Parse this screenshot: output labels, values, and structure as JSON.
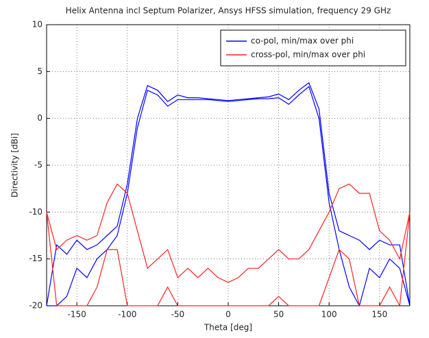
{
  "chart_data": {
    "type": "line",
    "title": "Helix Antenna incl Septum Polarizer, Ansys HFSS simulation, frequency 29 GHz",
    "x_label": "Theta [deg]",
    "y_label": "Directivity [dBi]",
    "x": [
      -180,
      -170,
      -160,
      -150,
      -140,
      -130,
      -120,
      -110,
      -100,
      -90,
      -80,
      -70,
      -60,
      -50,
      -40,
      -30,
      -20,
      -10,
      0,
      10,
      20,
      30,
      40,
      50,
      60,
      70,
      80,
      90,
      100,
      110,
      120,
      130,
      140,
      150,
      160,
      170,
      180
    ],
    "series": [
      {
        "name": "co-pol, min/max over phi",
        "color": "#0000ff",
        "values": [
          -20,
          -13.5,
          -14.5,
          -13,
          -14,
          -13.5,
          -12.5,
          -11.5,
          -7,
          0,
          3.5,
          3,
          1.8,
          2.5,
          2.2,
          2.2,
          2.1,
          2,
          1.9,
          2,
          2.1,
          2.2,
          2.3,
          2.6,
          2,
          3,
          3.8,
          1,
          -8,
          -12,
          -12.5,
          -13,
          -14,
          -13,
          -13.5,
          -13.5,
          -20
        ]
      },
      {
        "color": "#0000ff",
        "values": [
          -20,
          -20,
          -19,
          -16,
          -17,
          -15,
          -14,
          -12.5,
          -8,
          -1,
          3,
          2.5,
          1.3,
          2,
          2,
          2,
          2,
          1.9,
          1.8,
          1.9,
          2,
          2.1,
          2.1,
          2.2,
          1.5,
          2.5,
          3.4,
          0,
          -9,
          -14,
          -18,
          -20,
          -16,
          -17,
          -15,
          -16,
          -20
        ]
      },
      {
        "name": "cross-pol, min/max over phi",
        "color": "#ff2020",
        "values": [
          -10,
          -14,
          -13,
          -12.5,
          -13,
          -12.5,
          -9,
          -7,
          -8,
          -12,
          -16,
          -15,
          -14,
          -17,
          -16,
          -17,
          -16,
          -17,
          -17.5,
          -17,
          -16,
          -16,
          -15,
          -14,
          -15,
          -15,
          -14,
          -12,
          -10,
          -7.5,
          -7,
          -8,
          -8,
          -12,
          -13,
          -15,
          -10
        ]
      },
      {
        "color": "#ff2020",
        "values": [
          -10,
          -20,
          -20,
          -20,
          -20,
          -18,
          -14,
          -14,
          -20,
          -20,
          -20,
          -20,
          -18,
          -20,
          -20,
          -20,
          -20,
          -20,
          -20,
          -20,
          -20,
          -20,
          -20,
          -19,
          -20,
          -20,
          -20,
          -20,
          -17,
          -14,
          -15,
          -20,
          -20,
          -20,
          -18,
          -20,
          -10
        ]
      }
    ],
    "xlim": [
      -180,
      180
    ],
    "ylim": [
      -20,
      10
    ],
    "xticks": [
      -150,
      -100,
      -50,
      0,
      50,
      100,
      150
    ],
    "yticks": [
      -20,
      -15,
      -10,
      -5,
      0,
      5,
      10
    ],
    "grid": true,
    "legend": "upper-right"
  }
}
